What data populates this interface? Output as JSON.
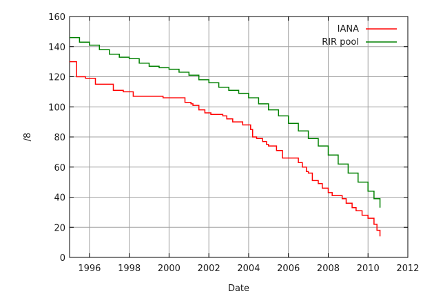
{
  "chart_data": {
    "type": "line",
    "title": "",
    "xlabel": "Date",
    "ylabel": "/8",
    "xlim": [
      1995,
      2012
    ],
    "ylim": [
      0,
      160
    ],
    "x_ticks": [
      1996,
      1998,
      2000,
      2002,
      2004,
      2006,
      2008,
      2010,
      2012
    ],
    "y_ticks": [
      0,
      20,
      40,
      60,
      80,
      100,
      120,
      140,
      160
    ],
    "grid": true,
    "legend_position": "top-right",
    "series": [
      {
        "name": "IANA",
        "color": "#ff0000",
        "x": [
          1995.0,
          1995.2,
          1995.35,
          1995.8,
          1996.0,
          1996.3,
          1997.0,
          1997.2,
          1997.7,
          1998.0,
          1998.2,
          1999.0,
          1999.7,
          2000.5,
          2000.8,
          2001.1,
          2001.2,
          2001.5,
          2001.8,
          2002.1,
          2002.5,
          2002.7,
          2002.9,
          2003.2,
          2003.7,
          2004.1,
          2004.2,
          2004.4,
          2004.7,
          2004.9,
          2005.0,
          2005.4,
          2005.7,
          2006.0,
          2006.5,
          2006.7,
          2006.9,
          2007.0,
          2007.2,
          2007.5,
          2007.7,
          2008.0,
          2008.2,
          2008.7,
          2008.9,
          2009.2,
          2009.4,
          2009.7,
          2010.0,
          2010.3,
          2010.45,
          2010.6
        ],
        "y": [
          130,
          130,
          120,
          119,
          119,
          115,
          115,
          111,
          110,
          110,
          107,
          107,
          106,
          106,
          103,
          102,
          101,
          98,
          96,
          95,
          95,
          94,
          92,
          90,
          88,
          85,
          80,
          79,
          77,
          75,
          74,
          71,
          66,
          66,
          63,
          60,
          57,
          56,
          51,
          49,
          46,
          43,
          41,
          39,
          36,
          33,
          31,
          28,
          26,
          22,
          18,
          14
        ]
      },
      {
        "name": "RIR pool",
        "color": "#008000",
        "x": [
          1995.0,
          1995.5,
          1996.0,
          1996.5,
          1997.0,
          1997.5,
          1998.0,
          1998.5,
          1999.0,
          1999.5,
          2000.0,
          2000.5,
          2001.0,
          2001.5,
          2002.0,
          2002.5,
          2003.0,
          2003.5,
          2004.0,
          2004.5,
          2005.0,
          2005.5,
          2006.0,
          2006.5,
          2007.0,
          2007.5,
          2008.0,
          2008.5,
          2009.0,
          2009.5,
          2010.0,
          2010.3,
          2010.6
        ],
        "y": [
          146,
          143,
          141,
          138,
          135,
          133,
          132,
          129,
          127,
          126,
          125,
          123,
          121,
          118,
          116,
          113,
          111,
          109,
          106,
          102,
          98,
          94,
          89,
          84,
          79,
          74,
          68,
          62,
          56,
          50,
          44,
          39,
          33
        ]
      }
    ]
  }
}
